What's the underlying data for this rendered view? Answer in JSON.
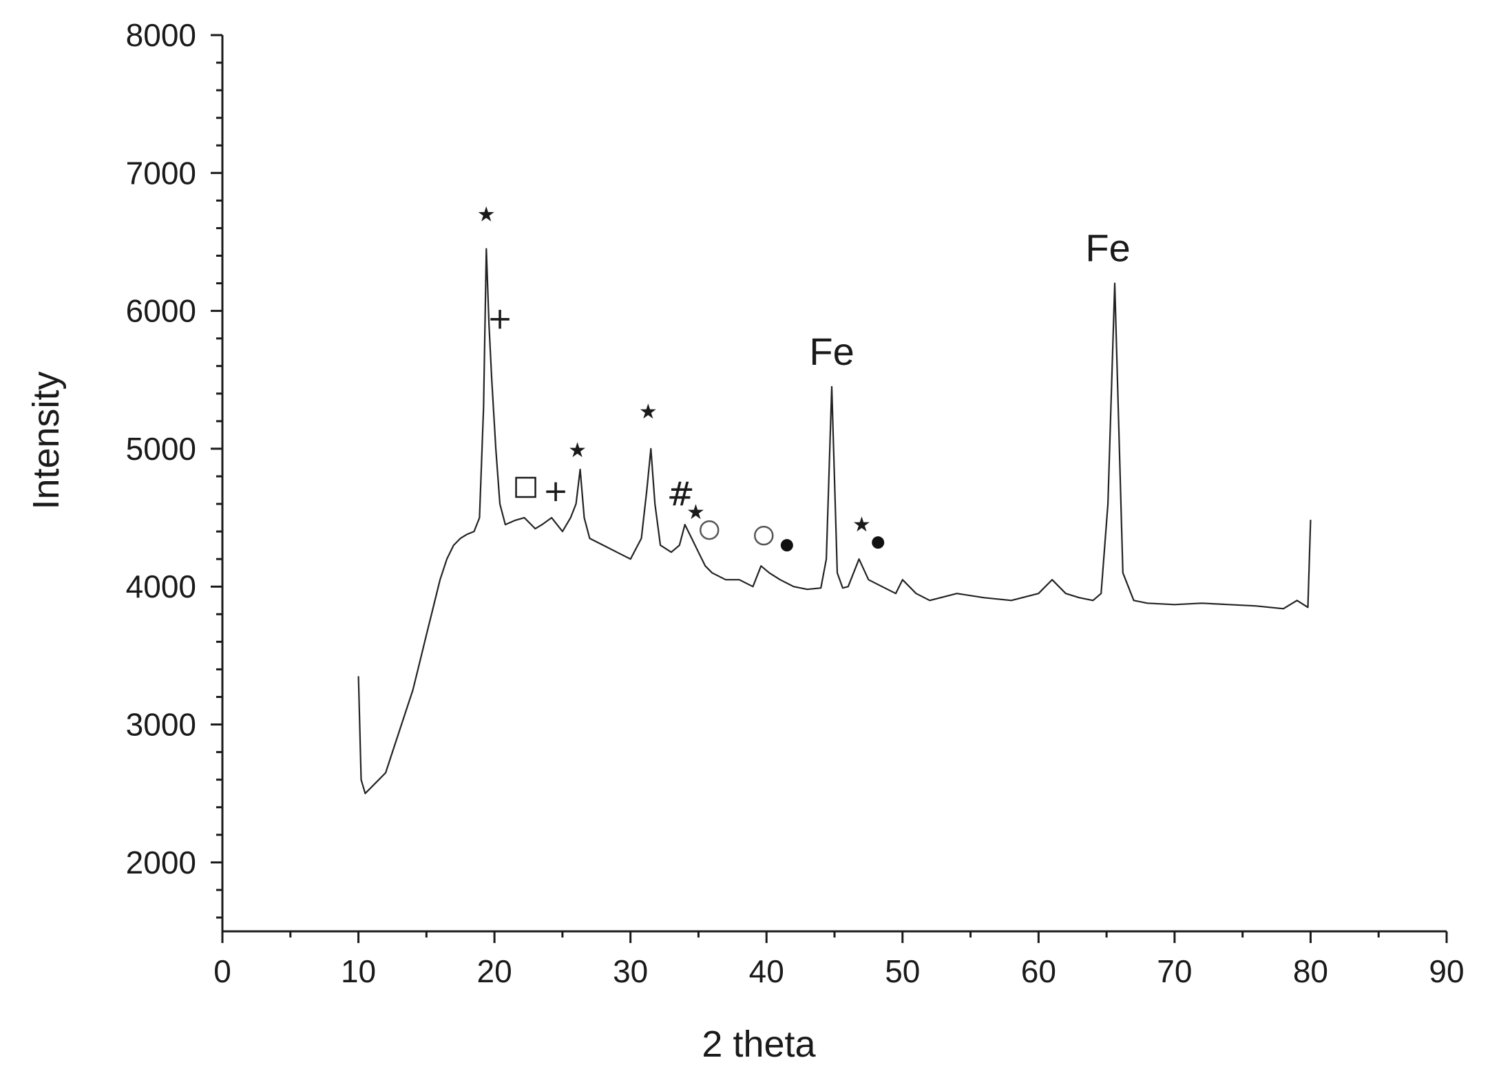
{
  "chart_data": {
    "type": "line",
    "title": "",
    "xlabel": "2 theta",
    "ylabel": "Intensity",
    "xlim": [
      0,
      90
    ],
    "ylim": [
      1500,
      8000
    ],
    "x_ticks": [
      0,
      10,
      20,
      30,
      40,
      50,
      60,
      70,
      80,
      90
    ],
    "y_ticks": [
      2000,
      3000,
      4000,
      5000,
      6000,
      7000,
      8000
    ],
    "grid": false,
    "legend": "none",
    "line_color": "#222222",
    "series": [
      {
        "x": [
          10,
          10.2,
          10.5,
          11,
          11.5,
          12,
          12.5,
          13,
          13.5,
          14,
          14.5,
          15,
          15.5,
          16,
          16.5,
          17,
          17.5,
          18,
          18.5,
          18.9,
          19.2,
          19.4,
          19.6,
          19.8,
          20.1,
          20.4,
          20.8,
          21.5,
          22.2,
          23,
          23.5,
          24.2,
          25,
          25.6,
          26,
          26.3,
          26.6,
          27,
          28,
          29,
          30,
          30.8,
          31.2,
          31.5,
          31.8,
          32.2,
          33,
          33.6,
          34,
          34.5,
          35,
          35.5,
          36,
          37,
          38,
          39,
          39.6,
          40.2,
          41,
          42,
          43,
          44,
          44.4,
          44.8,
          45.2,
          45.6,
          46,
          46.8,
          47.5,
          48.5,
          49.5,
          50,
          51,
          52,
          54,
          56,
          58,
          60,
          61,
          62,
          63,
          64,
          64.6,
          65.1,
          65.6,
          66.2,
          67,
          68,
          70,
          72,
          74,
          76,
          78,
          79,
          79.8,
          80,
          80.05
        ],
        "y": [
          3350,
          2600,
          2500,
          2550,
          2600,
          2650,
          2800,
          2950,
          3100,
          3250,
          3450,
          3650,
          3850,
          4050,
          4200,
          4300,
          4350,
          4380,
          4400,
          4500,
          5300,
          6450,
          5900,
          5500,
          5000,
          4600,
          4450,
          4480,
          4500,
          4420,
          4450,
          4500,
          4400,
          4500,
          4600,
          4850,
          4500,
          4350,
          4300,
          4250,
          4200,
          4350,
          4700,
          5000,
          4600,
          4300,
          4250,
          4300,
          4450,
          4350,
          4250,
          4150,
          4100,
          4050,
          4050,
          4000,
          4150,
          4100,
          4050,
          4000,
          3980,
          3990,
          4200,
          5450,
          4100,
          3990,
          4000,
          4200,
          4050,
          4000,
          3950,
          4050,
          3950,
          3900,
          3950,
          3920,
          3900,
          3950,
          4050,
          3950,
          3920,
          3900,
          3950,
          4600,
          6200,
          4100,
          3900,
          3880,
          3870,
          3880,
          3870,
          3860,
          3840,
          3900,
          3850,
          4480,
          4480
        ]
      }
    ],
    "annotations": [
      {
        "text": "Fe",
        "x": 44.8,
        "y": 5480
      },
      {
        "text": "Fe",
        "x": 65.1,
        "y": 6230
      }
    ],
    "phase_markers": [
      {
        "symbol": "star",
        "x": 19.4,
        "y": 6700
      },
      {
        "symbol": "plus",
        "x": 20.4,
        "y": 5950
      },
      {
        "symbol": "square",
        "x": 22.3,
        "y": 4720
      },
      {
        "symbol": "plus",
        "x": 24.5,
        "y": 4700
      },
      {
        "symbol": "star",
        "x": 26.1,
        "y": 4990
      },
      {
        "symbol": "star",
        "x": 31.3,
        "y": 5270
      },
      {
        "symbol": "hash",
        "x": 33.7,
        "y": 4680
      },
      {
        "symbol": "star",
        "x": 34.8,
        "y": 4540
      },
      {
        "symbol": "circle-open",
        "x": 35.8,
        "y": 4410
      },
      {
        "symbol": "circle-open",
        "x": 39.8,
        "y": 4370
      },
      {
        "symbol": "dot",
        "x": 41.5,
        "y": 4300
      },
      {
        "symbol": "star",
        "x": 47.0,
        "y": 4450
      },
      {
        "symbol": "dot",
        "x": 48.2,
        "y": 4320
      }
    ]
  }
}
